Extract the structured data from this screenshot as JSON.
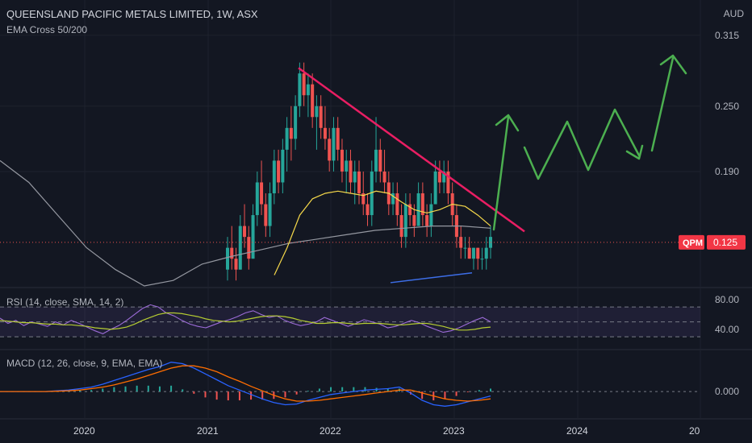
{
  "header": {
    "title": "QUEENSLAND PACIFIC METALS LIMITED, 1W, ASX",
    "indicator": "EMA Cross 50/200",
    "currency": "AUD"
  },
  "price_badge": {
    "ticker": "QPM",
    "value": "0.125"
  },
  "rsi_label": "RSI (14, close, SMA, 14, 2)",
  "macd_label": "MACD (12, 26, close, 9, EMA, EMA)",
  "colors": {
    "background": "#131722",
    "candle_up": "#26a69a",
    "candle_down": "#ef5350",
    "trendline": "#e91e63",
    "ema50": "#f5d84a",
    "ema200": "#9598a1",
    "support": "#3d6ee8",
    "projection": "#4caf50",
    "rsi": "#9c6bd8",
    "rsi_ma": "#b5cc32",
    "macd": "#2962ff",
    "signal": "#ff6d00"
  },
  "chart_data": [
    {
      "type": "candlestick",
      "title": "QUEENSLAND PACIFIC METALS LIMITED, 1W, ASX",
      "ylabel": "AUD",
      "ylim": [
        0.085,
        0.34
      ],
      "yticks": [
        "0.315",
        "0.250",
        "0.190"
      ],
      "xticks": [
        "2020",
        "2021",
        "2022",
        "2023",
        "2024",
        "20"
      ],
      "last_price": 0.125,
      "ohlc_weekly": [
        [
          0.1,
          0.13,
          0.09,
          0.12
        ],
        [
          0.12,
          0.14,
          0.1,
          0.11
        ],
        [
          0.11,
          0.12,
          0.09,
          0.1
        ],
        [
          0.1,
          0.15,
          0.1,
          0.14
        ],
        [
          0.14,
          0.16,
          0.12,
          0.13
        ],
        [
          0.13,
          0.14,
          0.1,
          0.11
        ],
        [
          0.11,
          0.16,
          0.11,
          0.15
        ],
        [
          0.15,
          0.19,
          0.14,
          0.18
        ],
        [
          0.18,
          0.2,
          0.15,
          0.16
        ],
        [
          0.16,
          0.17,
          0.13,
          0.14
        ],
        [
          0.14,
          0.18,
          0.13,
          0.17
        ],
        [
          0.17,
          0.21,
          0.16,
          0.2
        ],
        [
          0.2,
          0.21,
          0.17,
          0.18
        ],
        [
          0.18,
          0.22,
          0.17,
          0.21
        ],
        [
          0.21,
          0.24,
          0.19,
          0.23
        ],
        [
          0.23,
          0.25,
          0.2,
          0.22
        ],
        [
          0.22,
          0.26,
          0.21,
          0.25
        ],
        [
          0.25,
          0.29,
          0.24,
          0.28
        ],
        [
          0.28,
          0.29,
          0.25,
          0.26
        ],
        [
          0.26,
          0.28,
          0.24,
          0.27
        ],
        [
          0.27,
          0.28,
          0.23,
          0.24
        ],
        [
          0.24,
          0.26,
          0.21,
          0.25
        ],
        [
          0.25,
          0.26,
          0.22,
          0.23
        ],
        [
          0.23,
          0.25,
          0.21,
          0.22
        ],
        [
          0.22,
          0.23,
          0.19,
          0.2
        ],
        [
          0.2,
          0.24,
          0.19,
          0.23
        ],
        [
          0.23,
          0.24,
          0.2,
          0.21
        ],
        [
          0.21,
          0.22,
          0.18,
          0.19
        ],
        [
          0.19,
          0.21,
          0.17,
          0.2
        ],
        [
          0.2,
          0.21,
          0.17,
          0.18
        ],
        [
          0.18,
          0.2,
          0.16,
          0.19
        ],
        [
          0.19,
          0.2,
          0.16,
          0.17
        ],
        [
          0.17,
          0.19,
          0.15,
          0.16
        ],
        [
          0.16,
          0.17,
          0.14,
          0.15
        ],
        [
          0.15,
          0.2,
          0.14,
          0.19
        ],
        [
          0.19,
          0.24,
          0.18,
          0.21
        ],
        [
          0.21,
          0.22,
          0.18,
          0.19
        ],
        [
          0.19,
          0.21,
          0.17,
          0.18
        ],
        [
          0.18,
          0.19,
          0.15,
          0.16
        ],
        [
          0.16,
          0.18,
          0.15,
          0.17
        ],
        [
          0.17,
          0.18,
          0.14,
          0.15
        ],
        [
          0.15,
          0.16,
          0.12,
          0.13
        ],
        [
          0.13,
          0.17,
          0.12,
          0.16
        ],
        [
          0.16,
          0.17,
          0.14,
          0.15
        ],
        [
          0.15,
          0.16,
          0.13,
          0.14
        ],
        [
          0.14,
          0.18,
          0.14,
          0.17
        ],
        [
          0.17,
          0.18,
          0.14,
          0.15
        ],
        [
          0.15,
          0.16,
          0.13,
          0.14
        ],
        [
          0.14,
          0.17,
          0.13,
          0.16
        ],
        [
          0.16,
          0.2,
          0.16,
          0.19
        ],
        [
          0.19,
          0.2,
          0.17,
          0.18
        ],
        [
          0.18,
          0.2,
          0.17,
          0.19
        ],
        [
          0.19,
          0.2,
          0.16,
          0.17
        ],
        [
          0.17,
          0.18,
          0.14,
          0.15
        ],
        [
          0.15,
          0.16,
          0.12,
          0.13
        ],
        [
          0.13,
          0.14,
          0.11,
          0.12
        ],
        [
          0.12,
          0.13,
          0.11,
          0.12
        ],
        [
          0.12,
          0.13,
          0.11,
          0.11
        ],
        [
          0.11,
          0.12,
          0.1,
          0.12
        ],
        [
          0.12,
          0.12,
          0.1,
          0.11
        ],
        [
          0.11,
          0.12,
          0.1,
          0.11
        ],
        [
          0.11,
          0.13,
          0.1,
          0.12
        ],
        [
          0.12,
          0.14,
          0.11,
          0.13
        ]
      ],
      "ema50": [
        0.095,
        0.12,
        0.15,
        0.165,
        0.17,
        0.172,
        0.17,
        0.168,
        0.172,
        0.17,
        0.162,
        0.155,
        0.152,
        0.155,
        0.16,
        0.158,
        0.15,
        0.14
      ],
      "ema200": [
        0.2,
        0.18,
        0.15,
        0.12,
        0.1,
        0.085,
        0.09,
        0.105,
        0.112,
        0.118,
        0.124,
        0.128,
        0.132,
        0.136,
        0.138,
        0.14,
        0.14,
        0.138
      ],
      "trendline": [
        [
          0.285,
          0.235
        ],
        [
          0.235,
          0.135
        ]
      ],
      "support": [
        [
          0.088,
          0.097
        ]
      ]
    },
    {
      "type": "line",
      "title": "RSI (14, close, SMA, 14, 2)",
      "ylim": [
        15,
        95
      ],
      "yticks": [
        "80.00",
        "40.00"
      ],
      "bands": [
        70,
        50,
        30
      ],
      "series": [
        {
          "name": "RSI",
          "values": [
            55,
            48,
            52,
            45,
            50,
            47,
            44,
            50,
            46,
            52,
            48,
            43,
            38,
            34,
            40,
            45,
            52,
            60,
            68,
            73,
            70,
            62,
            58,
            52,
            47,
            44,
            42,
            46,
            50,
            53,
            57,
            62,
            65,
            60,
            56,
            58,
            52,
            48,
            45,
            47,
            50,
            56,
            52,
            48,
            44,
            48,
            53,
            50,
            47,
            42,
            44,
            48,
            52,
            49,
            44,
            40,
            36,
            38,
            42,
            47,
            52,
            56,
            50
          ]
        },
        {
          "name": "RSI-based MA",
          "values": [
            52,
            51,
            50,
            49,
            49,
            48,
            47,
            47,
            46,
            46,
            45,
            44,
            42,
            41,
            40,
            41,
            43,
            47,
            52,
            56,
            60,
            62,
            62,
            61,
            59,
            57,
            54,
            52,
            51,
            50,
            51,
            53,
            55,
            57,
            58,
            58,
            57,
            55,
            52,
            50,
            48,
            48,
            49,
            49,
            48,
            47,
            48,
            48,
            48,
            47,
            46,
            46,
            47,
            48,
            48,
            46,
            44,
            41,
            39,
            39,
            40,
            42,
            43
          ]
        }
      ]
    },
    {
      "type": "line",
      "title": "MACD (12, 26, close, 9, EMA, EMA)",
      "ylim": [
        -0.035,
        0.055
      ],
      "yticks": [
        "0.000"
      ],
      "series": [
        {
          "name": "MACD",
          "values": [
            0,
            0,
            0,
            0,
            0,
            0.001,
            0.002,
            0.004,
            0.006,
            0.01,
            0.015,
            0.02,
            0.025,
            0.03,
            0.034,
            0.04,
            0.038,
            0.032,
            0.024,
            0.016,
            0.008,
            0.002,
            -0.004,
            -0.01,
            -0.015,
            -0.018,
            -0.017,
            -0.012,
            -0.008,
            -0.004,
            -0.002,
            0.0,
            0.002,
            0.003,
            0.004,
            0.006,
            -0.002,
            -0.012,
            -0.018,
            -0.02,
            -0.018,
            -0.014,
            -0.01,
            -0.006
          ]
        },
        {
          "name": "Signal",
          "values": [
            0,
            0,
            0,
            0,
            0,
            0.0005,
            0.001,
            0.002,
            0.004,
            0.006,
            0.009,
            0.013,
            0.017,
            0.022,
            0.027,
            0.032,
            0.035,
            0.035,
            0.032,
            0.027,
            0.02,
            0.014,
            0.007,
            0.001,
            -0.005,
            -0.01,
            -0.013,
            -0.013,
            -0.012,
            -0.01,
            -0.008,
            -0.006,
            -0.004,
            -0.002,
            0.0,
            0.002,
            0.002,
            -0.002,
            -0.006,
            -0.01,
            -0.012,
            -0.013,
            -0.012,
            -0.01
          ]
        }
      ]
    }
  ]
}
